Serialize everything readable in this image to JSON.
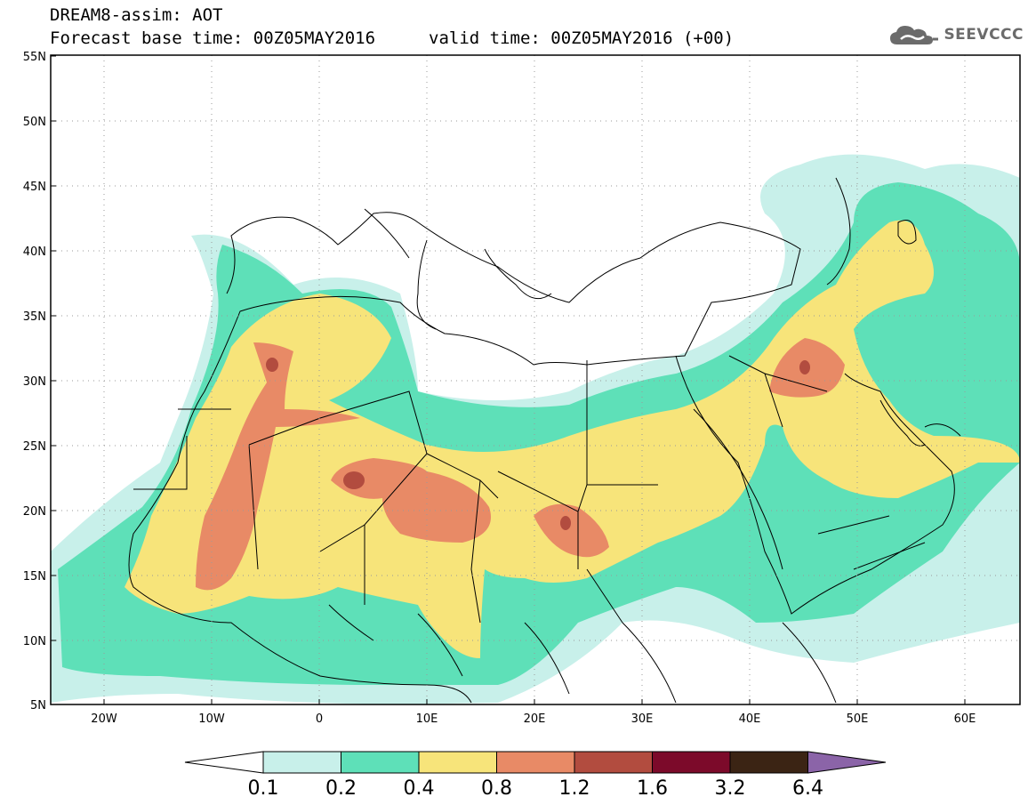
{
  "header": {
    "model_line": "DREAM8-assim: AOT",
    "base_time_line": "Forecast base time: 00Z05MAY2016",
    "valid_time_line": "valid time: 00Z05MAY2016 (+00)"
  },
  "logo": {
    "text": "SEEVCCC",
    "icon": "cloud-icon"
  },
  "map": {
    "lat_labels": [
      "55N",
      "50N",
      "45N",
      "40N",
      "35N",
      "30N",
      "25N",
      "20N",
      "15N",
      "10N",
      "5N"
    ],
    "lon_labels": [
      "20W",
      "10W",
      "0",
      "10E",
      "20E",
      "30E",
      "40E",
      "50E",
      "60E"
    ],
    "lat_range": [
      5,
      55
    ],
    "lon_range": [
      -25,
      65
    ],
    "grid": "dotted"
  },
  "colorbar": {
    "levels": [
      "0.1",
      "0.2",
      "0.4",
      "0.8",
      "1.2",
      "1.6",
      "3.2",
      "6.4"
    ],
    "colors": [
      "#ffffff",
      "#c8f0ea",
      "#5ee0b8",
      "#f7e47a",
      "#e88a66",
      "#b24c3f",
      "#7c0a2a",
      "#3b2414",
      "#8b64a8"
    ]
  },
  "fields": {
    "colors": {
      "c02": "#c8f0ea",
      "c04": "#5ee0b8",
      "c08": "#f7e47a",
      "c12": "#e88a66",
      "c16": "#b24c3f"
    }
  }
}
